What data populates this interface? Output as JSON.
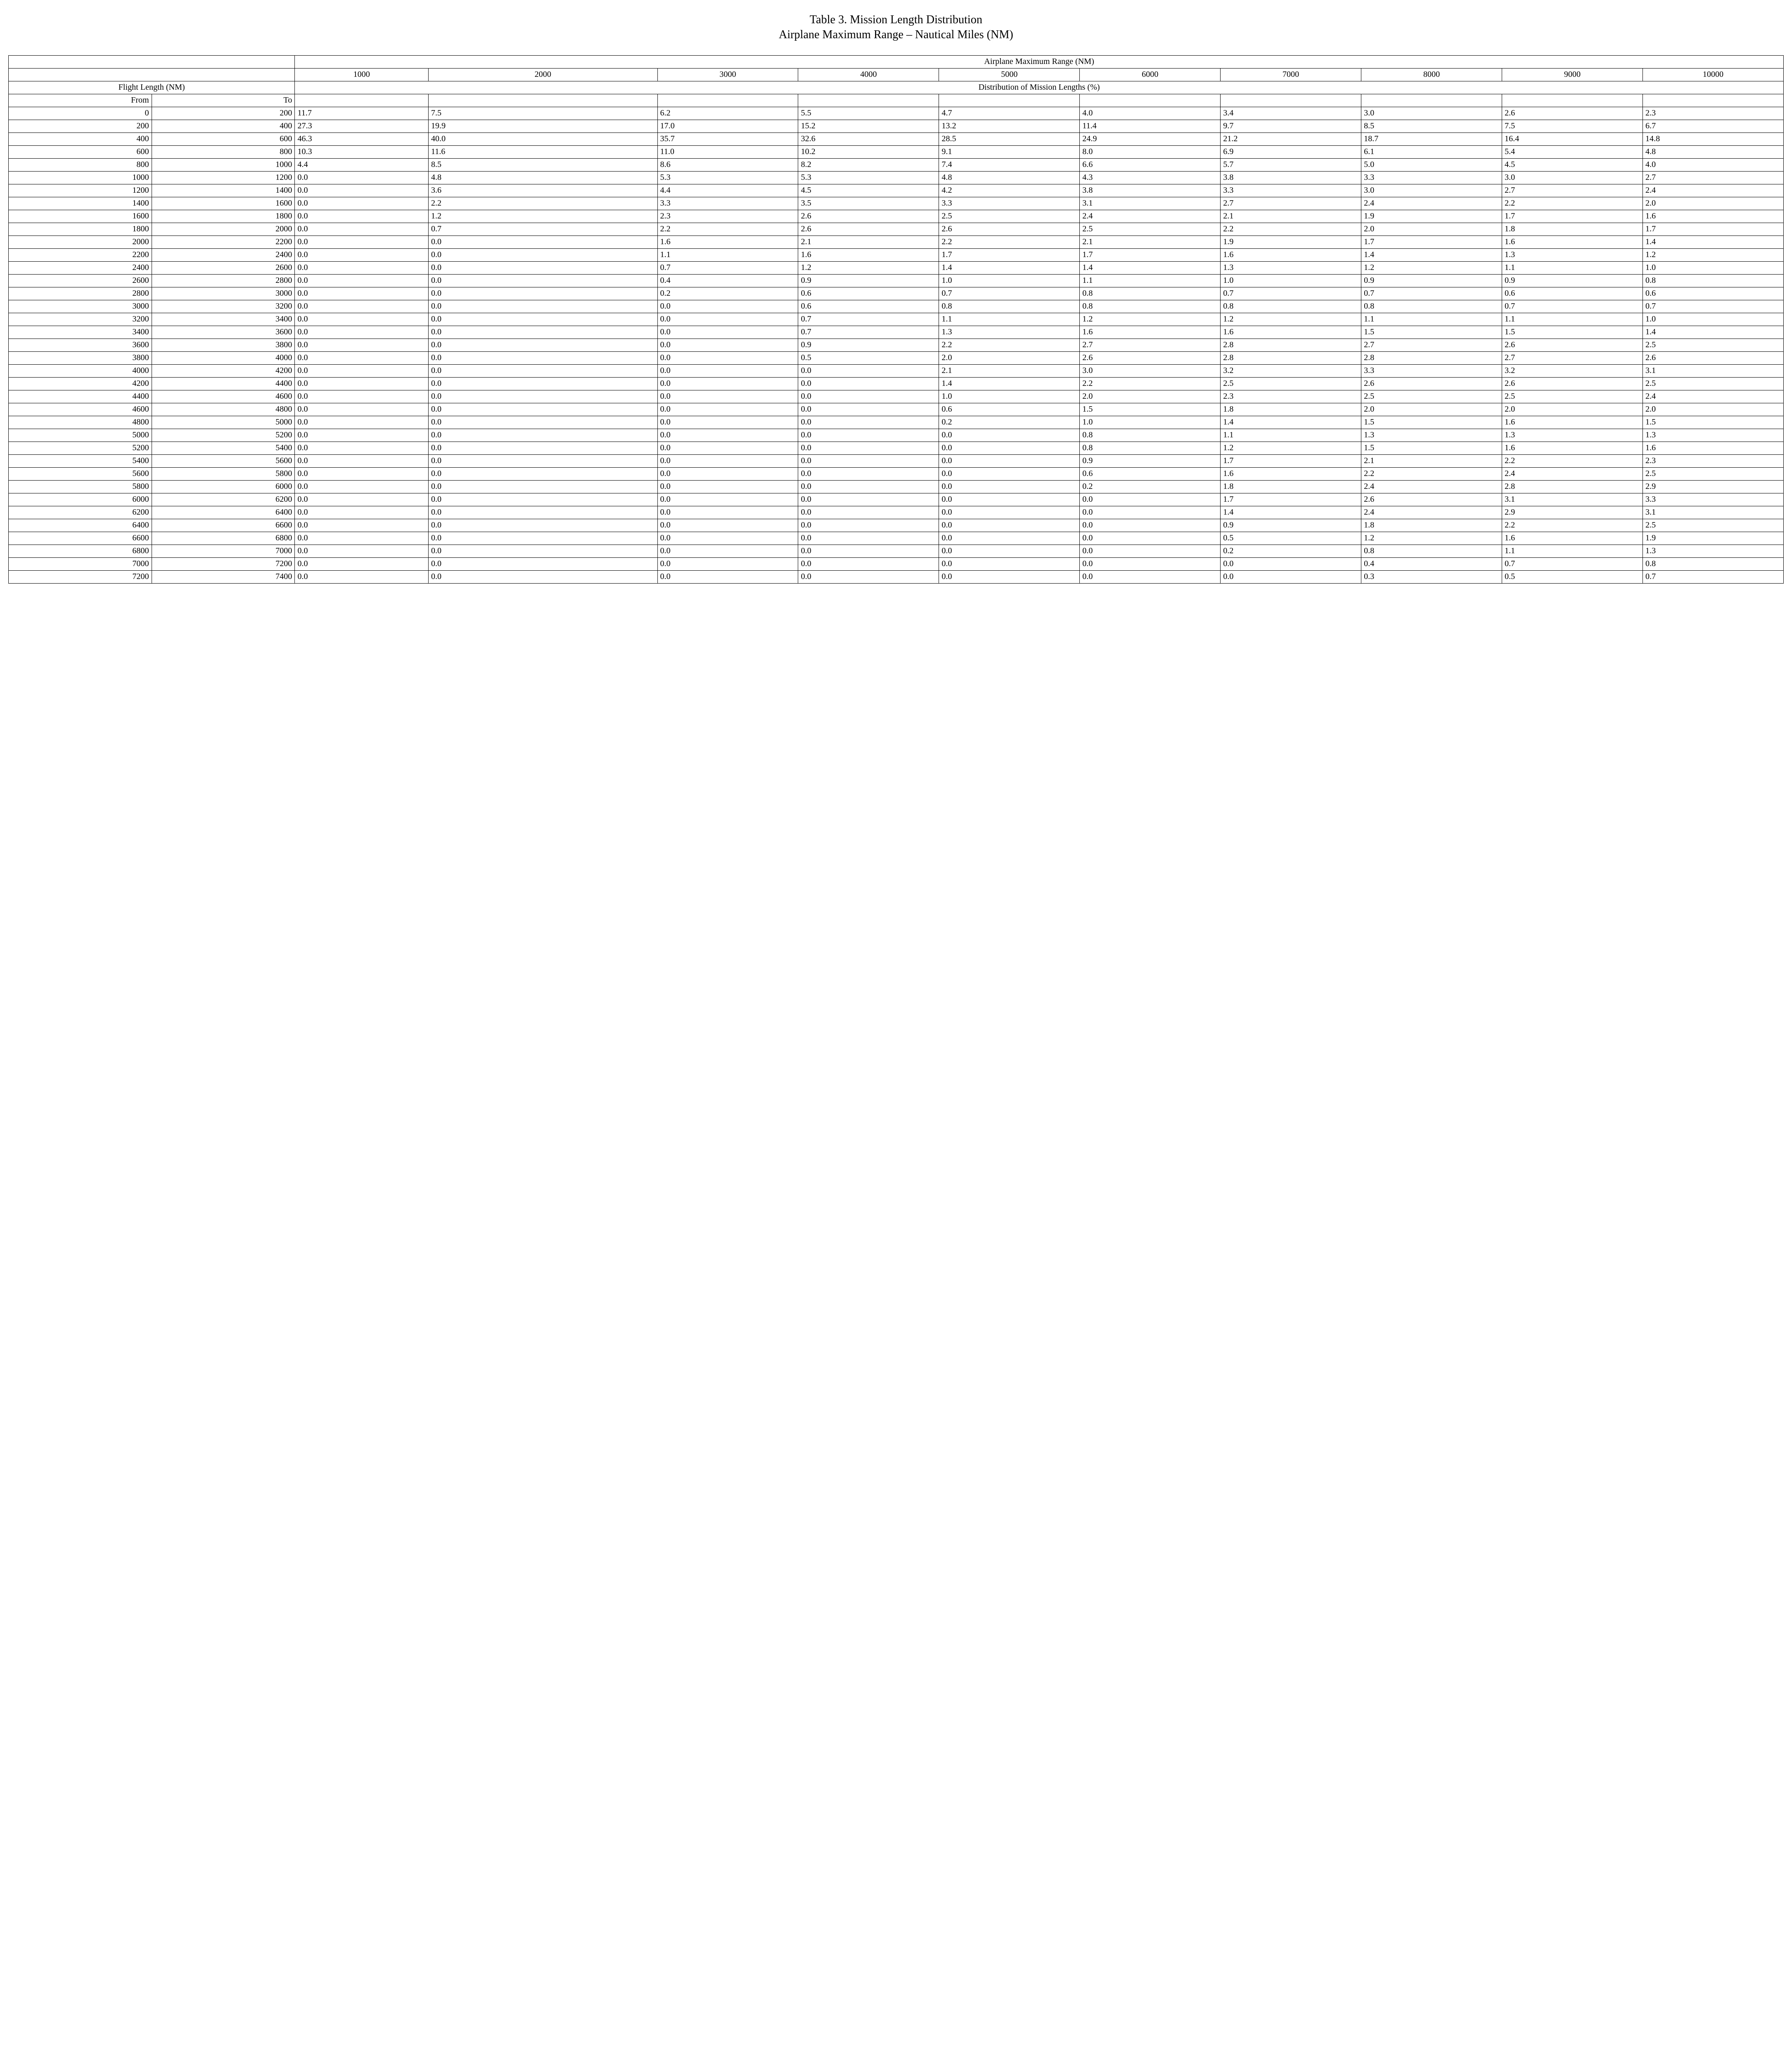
{
  "title": {
    "line1": "Table 3. Mission Length Distribution",
    "line2": "Airplane Maximum Range – Nautical Miles (NM)"
  },
  "headers": {
    "top_span": "Airplane Maximum Range (NM)",
    "ranges": [
      "1000",
      "2000",
      "3000",
      "4000",
      "5000",
      "6000",
      "7000",
      "8000",
      "9000",
      "10000"
    ],
    "flight_length_label": "Flight Length (NM)",
    "distribution_label": "Distribution of Mission Lengths (%)",
    "from": "From",
    "to": "To"
  },
  "rows": [
    {
      "from": "0",
      "to": "200",
      "v": [
        "11.7",
        "7.5",
        "6.2",
        "5.5",
        "4.7",
        "4.0",
        "3.4",
        "3.0",
        "2.6",
        "2.3"
      ]
    },
    {
      "from": "200",
      "to": "400",
      "v": [
        "27.3",
        "19.9",
        "17.0",
        "15.2",
        "13.2",
        "11.4",
        "9.7",
        "8.5",
        "7.5",
        "6.7"
      ]
    },
    {
      "from": "400",
      "to": "600",
      "v": [
        "46.3",
        "40.0",
        "35.7",
        "32.6",
        "28.5",
        "24.9",
        "21.2",
        "18.7",
        "16.4",
        "14.8"
      ]
    },
    {
      "from": "600",
      "to": "800",
      "v": [
        "10.3",
        "11.6",
        "11.0",
        "10.2",
        "9.1",
        "8.0",
        "6.9",
        "6.1",
        "5.4",
        "4.8"
      ]
    },
    {
      "from": "800",
      "to": "1000",
      "v": [
        "4.4",
        "8.5",
        "8.6",
        "8.2",
        "7.4",
        "6.6",
        "5.7",
        "5.0",
        "4.5",
        "4.0"
      ]
    },
    {
      "from": "1000",
      "to": "1200",
      "v": [
        "0.0",
        "4.8",
        "5.3",
        "5.3",
        "4.8",
        "4.3",
        "3.8",
        "3.3",
        "3.0",
        "2.7"
      ]
    },
    {
      "from": "1200",
      "to": "1400",
      "v": [
        "0.0",
        "3.6",
        "4.4",
        "4.5",
        "4.2",
        "3.8",
        "3.3",
        "3.0",
        "2.7",
        "2.4"
      ]
    },
    {
      "from": "1400",
      "to": "1600",
      "v": [
        "0.0",
        "2.2",
        "3.3",
        "3.5",
        "3.3",
        "3.1",
        "2.7",
        "2.4",
        "2.2",
        "2.0"
      ]
    },
    {
      "from": "1600",
      "to": "1800",
      "v": [
        "0.0",
        "1.2",
        "2.3",
        "2.6",
        "2.5",
        "2.4",
        "2.1",
        "1.9",
        "1.7",
        "1.6"
      ]
    },
    {
      "from": "1800",
      "to": "2000",
      "v": [
        "0.0",
        "0.7",
        "2.2",
        "2.6",
        "2.6",
        "2.5",
        "2.2",
        "2.0",
        "1.8",
        "1.7"
      ]
    },
    {
      "from": "2000",
      "to": "2200",
      "v": [
        "0.0",
        "0.0",
        "1.6",
        "2.1",
        "2.2",
        "2.1",
        "1.9",
        "1.7",
        "1.6",
        "1.4"
      ]
    },
    {
      "from": "2200",
      "to": "2400",
      "v": [
        "0.0",
        "0.0",
        "1.1",
        "1.6",
        "1.7",
        "1.7",
        "1.6",
        "1.4",
        "1.3",
        "1.2"
      ]
    },
    {
      "from": "2400",
      "to": "2600",
      "v": [
        "0.0",
        "0.0",
        "0.7",
        "1.2",
        "1.4",
        "1.4",
        "1.3",
        "1.2",
        "1.1",
        "1.0"
      ]
    },
    {
      "from": "2600",
      "to": "2800",
      "v": [
        "0.0",
        "0.0",
        "0.4",
        "0.9",
        "1.0",
        "1.1",
        "1.0",
        "0.9",
        "0.9",
        "0.8"
      ]
    },
    {
      "from": "2800",
      "to": "3000",
      "v": [
        "0.0",
        "0.0",
        "0.2",
        "0.6",
        "0.7",
        "0.8",
        "0.7",
        "0.7",
        "0.6",
        "0.6"
      ]
    },
    {
      "from": "3000",
      "to": "3200",
      "v": [
        "0.0",
        "0.0",
        "0.0",
        "0.6",
        "0.8",
        "0.8",
        "0.8",
        "0.8",
        "0.7",
        "0.7"
      ]
    },
    {
      "from": "3200",
      "to": "3400",
      "v": [
        "0.0",
        "0.0",
        "0.0",
        "0.7",
        "1.1",
        "1.2",
        "1.2",
        "1.1",
        "1.1",
        "1.0"
      ]
    },
    {
      "from": "3400",
      "to": "3600",
      "v": [
        "0.0",
        "0.0",
        "0.0",
        "0.7",
        "1.3",
        "1.6",
        "1.6",
        "1.5",
        "1.5",
        "1.4"
      ]
    },
    {
      "from": "3600",
      "to": "3800",
      "v": [
        "0.0",
        "0.0",
        "0.0",
        "0.9",
        "2.2",
        "2.7",
        "2.8",
        "2.7",
        "2.6",
        "2.5"
      ]
    },
    {
      "from": "3800",
      "to": "4000",
      "v": [
        "0.0",
        "0.0",
        "0.0",
        "0.5",
        "2.0",
        "2.6",
        "2.8",
        "2.8",
        "2.7",
        "2.6"
      ]
    },
    {
      "from": "4000",
      "to": "4200",
      "v": [
        "0.0",
        "0.0",
        "0.0",
        "0.0",
        "2.1",
        "3.0",
        "3.2",
        "3.3",
        "3.2",
        "3.1"
      ]
    },
    {
      "from": "4200",
      "to": "4400",
      "v": [
        "0.0",
        "0.0",
        "0.0",
        "0.0",
        "1.4",
        "2.2",
        "2.5",
        "2.6",
        "2.6",
        "2.5"
      ]
    },
    {
      "from": "4400",
      "to": "4600",
      "v": [
        "0.0",
        "0.0",
        "0.0",
        "0.0",
        "1.0",
        "2.0",
        "2.3",
        "2.5",
        "2.5",
        "2.4"
      ]
    },
    {
      "from": "4600",
      "to": "4800",
      "v": [
        "0.0",
        "0.0",
        "0.0",
        "0.0",
        "0.6",
        "1.5",
        "1.8",
        "2.0",
        "2.0",
        "2.0"
      ]
    },
    {
      "from": "4800",
      "to": "5000",
      "v": [
        "0.0",
        "0.0",
        "0.0",
        "0.0",
        "0.2",
        "1.0",
        "1.4",
        "1.5",
        "1.6",
        "1.5"
      ]
    },
    {
      "from": "5000",
      "to": "5200",
      "v": [
        "0.0",
        "0.0",
        "0.0",
        "0.0",
        "0.0",
        "0.8",
        "1.1",
        "1.3",
        "1.3",
        "1.3"
      ]
    },
    {
      "from": "5200",
      "to": "5400",
      "v": [
        "0.0",
        "0.0",
        "0.0",
        "0.0",
        "0.0",
        "0.8",
        "1.2",
        "1.5",
        "1.6",
        "1.6"
      ]
    },
    {
      "from": "5400",
      "to": "5600",
      "v": [
        "0.0",
        "0.0",
        "0.0",
        "0.0",
        "0.0",
        "0.9",
        "1.7",
        "2.1",
        "2.2",
        "2.3"
      ]
    },
    {
      "from": "5600",
      "to": "5800",
      "v": [
        "0.0",
        "0.0",
        "0.0",
        "0.0",
        "0.0",
        "0.6",
        "1.6",
        "2.2",
        "2.4",
        "2.5"
      ]
    },
    {
      "from": "5800",
      "to": "6000",
      "v": [
        "0.0",
        "0.0",
        "0.0",
        "0.0",
        "0.0",
        "0.2",
        "1.8",
        "2.4",
        "2.8",
        "2.9"
      ]
    },
    {
      "from": "6000",
      "to": "6200",
      "v": [
        "0.0",
        "0.0",
        "0.0",
        "0.0",
        "0.0",
        "0.0",
        "1.7",
        "2.6",
        "3.1",
        "3.3"
      ]
    },
    {
      "from": "6200",
      "to": "6400",
      "v": [
        "0.0",
        "0.0",
        "0.0",
        "0.0",
        "0.0",
        "0.0",
        "1.4",
        "2.4",
        "2.9",
        "3.1"
      ]
    },
    {
      "from": "6400",
      "to": "6600",
      "v": [
        "0.0",
        "0.0",
        "0.0",
        "0.0",
        "0.0",
        "0.0",
        "0.9",
        "1.8",
        "2.2",
        "2.5"
      ]
    },
    {
      "from": "6600",
      "to": "6800",
      "v": [
        "0.0",
        "0.0",
        "0.0",
        "0.0",
        "0.0",
        "0.0",
        "0.5",
        "1.2",
        "1.6",
        "1.9"
      ]
    },
    {
      "from": "6800",
      "to": "7000",
      "v": [
        "0.0",
        "0.0",
        "0.0",
        "0.0",
        "0.0",
        "0.0",
        "0.2",
        "0.8",
        "1.1",
        "1.3"
      ]
    },
    {
      "from": "7000",
      "to": "7200",
      "v": [
        "0.0",
        "0.0",
        "0.0",
        "0.0",
        "0.0",
        "0.0",
        "0.0",
        "0.4",
        "0.7",
        "0.8"
      ]
    },
    {
      "from": "7200",
      "to": "7400",
      "v": [
        "0.0",
        "0.0",
        "0.0",
        "0.0",
        "0.0",
        "0.0",
        "0.0",
        "0.3",
        "0.5",
        "0.7"
      ]
    }
  ]
}
